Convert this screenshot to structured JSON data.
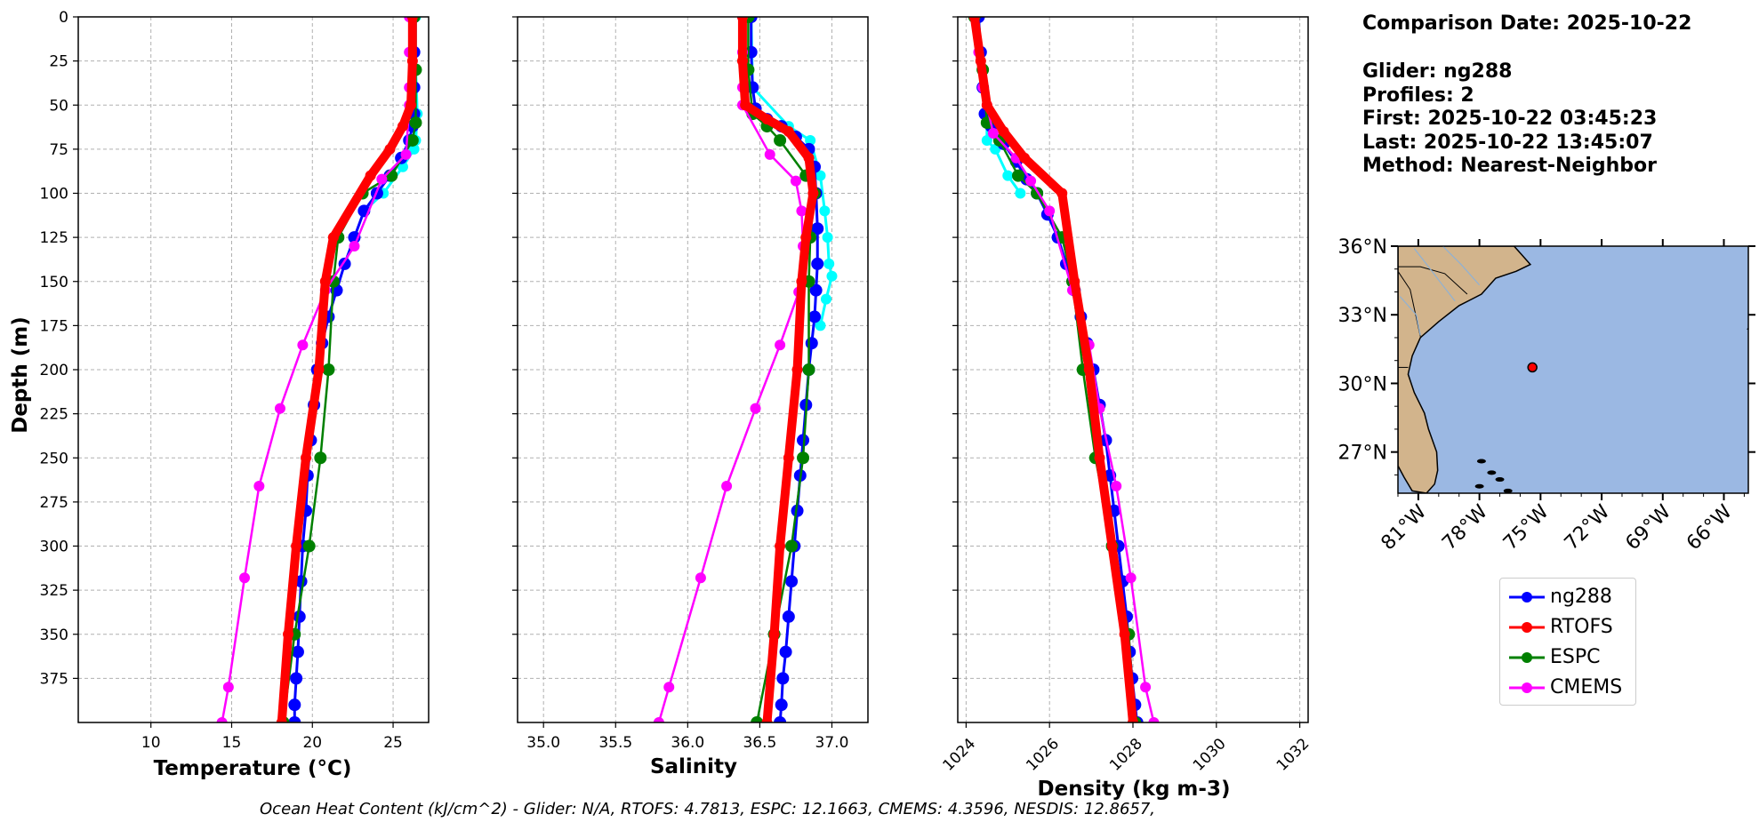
{
  "info": {
    "comparison_date": "Comparison Date: 2025-10-22",
    "glider": "Glider: ng288",
    "profiles": "Profiles: 2",
    "first": "First: 2025-10-22 03:45:23",
    "last": "Last: 2025-10-22 13:45:07",
    "method": "Method: Nearest-Neighbor"
  },
  "ohc_caption": "Ocean Heat Content (kJ/cm^2) - Glider: N/A,  RTOFS: 4.7813,  ESPC: 12.1663,  CMEMS: 4.3596,  NESDIS: 12.8657,",
  "legend": [
    {
      "label": "ng288",
      "color": "#0000ff"
    },
    {
      "label": "RTOFS",
      "color": "#ff0000"
    },
    {
      "label": "ESPC",
      "color": "#008000"
    },
    {
      "label": "CMEMS",
      "color": "#ff00ff"
    }
  ],
  "chart_data": [
    {
      "type": "line",
      "xlabel": "Temperature (°C)",
      "ylabel": "Depth (m)",
      "xlim": [
        5.5,
        27.2
      ],
      "ylim": [
        400,
        0
      ],
      "xticks": [
        10,
        15,
        20,
        25
      ],
      "yticks": [
        0,
        25,
        50,
        75,
        100,
        125,
        150,
        175,
        200,
        225,
        250,
        275,
        300,
        325,
        350,
        375
      ],
      "grid": true,
      "series": [
        {
          "name": "ng288",
          "color": "#0000ff",
          "x": [
            26.3,
            26.3,
            26.3,
            26.3,
            26.2,
            26.0,
            25.5,
            24.8,
            24.0,
            23.2,
            22.6,
            22.0,
            21.5,
            21.0,
            20.6,
            20.3,
            20.1,
            19.9,
            19.7,
            19.6,
            19.4,
            19.3,
            19.2,
            19.1,
            19.0,
            18.9,
            18.9
          ],
          "y": [
            0,
            20,
            40,
            55,
            62,
            70,
            80,
            90,
            100,
            110,
            125,
            140,
            155,
            170,
            185,
            200,
            220,
            240,
            260,
            280,
            300,
            320,
            340,
            360,
            375,
            390,
            400
          ]
        },
        {
          "name": "RTOFS",
          "color": "#ff0000",
          "x": [
            26.2,
            26.2,
            26.1,
            25.6,
            24.8,
            23.6,
            21.3,
            20.8,
            20.4,
            19.6,
            19.0,
            18.5,
            18.1
          ],
          "y": [
            0,
            25,
            50,
            62,
            75,
            90,
            125,
            150,
            200,
            250,
            300,
            350,
            400
          ]
        },
        {
          "name": "ESPC",
          "color": "#008000",
          "x": [
            26.3,
            26.4,
            26.4,
            26.2,
            24.9,
            23.1,
            21.6,
            21.3,
            21.0,
            20.5,
            19.8,
            18.9,
            18.2
          ],
          "y": [
            0,
            30,
            60,
            70,
            90,
            100,
            125,
            150,
            200,
            250,
            300,
            350,
            400
          ]
        },
        {
          "name": "CMEMS",
          "color": "#ff00ff",
          "x": [
            26.0,
            26.0,
            26.0,
            26.0,
            25.8,
            24.3,
            22.6,
            20.8,
            19.4,
            18.0,
            16.7,
            15.8,
            14.8,
            14.4
          ],
          "y": [
            0,
            20,
            40,
            50,
            78,
            92,
            130,
            155,
            186,
            222,
            266,
            318,
            380,
            400
          ]
        },
        {
          "name": "",
          "color": "#00ffff",
          "x": [
            26.4,
            26.4,
            26.5,
            26.4,
            26.3,
            25.6,
            24.4,
            23.2
          ],
          "y": [
            0,
            30,
            55,
            70,
            75,
            85,
            100,
            110
          ]
        }
      ]
    },
    {
      "type": "line",
      "xlabel": "Salinity",
      "xlim": [
        34.82,
        37.25
      ],
      "ylim": [
        400,
        0
      ],
      "xticks": [
        35.0,
        35.5,
        36.0,
        36.5,
        37.0
      ],
      "grid": true,
      "series": [
        {
          "name": "ng288",
          "color": "#0000ff",
          "x": [
            36.44,
            36.44,
            36.45,
            36.47,
            36.55,
            36.65,
            36.75,
            36.84,
            36.88,
            36.89,
            36.9,
            36.9,
            36.89,
            36.88,
            36.86,
            36.84,
            36.82,
            36.8,
            36.78,
            36.76,
            36.74,
            36.72,
            36.7,
            36.68,
            36.66,
            36.65,
            36.64
          ],
          "y": [
            0,
            20,
            40,
            52,
            58,
            62,
            68,
            75,
            85,
            100,
            120,
            140,
            155,
            170,
            185,
            200,
            220,
            240,
            260,
            280,
            300,
            320,
            340,
            360,
            375,
            390,
            400
          ]
        },
        {
          "name": "RTOFS",
          "color": "#ff0000",
          "x": [
            36.38,
            36.38,
            36.4,
            36.55,
            36.7,
            36.84,
            36.87,
            36.82,
            36.79,
            36.76,
            36.7,
            36.64,
            36.6,
            36.55
          ],
          "y": [
            0,
            25,
            50,
            58,
            65,
            80,
            100,
            125,
            150,
            200,
            250,
            300,
            350,
            400
          ]
        },
        {
          "name": "ESPC",
          "color": "#008000",
          "x": [
            36.42,
            36.42,
            36.45,
            36.55,
            36.64,
            36.82,
            36.88,
            36.85,
            36.84,
            36.84,
            36.8,
            36.72,
            36.6,
            36.48
          ],
          "y": [
            0,
            30,
            55,
            62,
            70,
            90,
            100,
            125,
            150,
            200,
            250,
            300,
            350,
            400
          ]
        },
        {
          "name": "CMEMS",
          "color": "#ff00ff",
          "x": [
            36.38,
            36.38,
            36.38,
            36.38,
            36.57,
            36.75,
            36.79,
            36.8,
            36.77,
            36.64,
            36.47,
            36.27,
            36.09,
            35.87,
            35.8
          ],
          "y": [
            0,
            20,
            40,
            50,
            78,
            93,
            110,
            130,
            156,
            186,
            222,
            266,
            318,
            380,
            400
          ]
        },
        {
          "name": "",
          "color": "#00ffff",
          "x": [
            36.44,
            36.45,
            36.7,
            36.85,
            36.92,
            36.95,
            36.97,
            36.98,
            37.0,
            36.96,
            36.92
          ],
          "y": [
            0,
            40,
            62,
            70,
            90,
            110,
            125,
            140,
            147,
            160,
            175
          ]
        }
      ]
    },
    {
      "type": "line",
      "xlabel": "Density (kg m-3)",
      "xlim": [
        1023.8,
        1032.2
      ],
      "ylim": [
        400,
        0
      ],
      "xticks": [
        1024,
        1026,
        1028,
        1030,
        1032
      ],
      "grid": true,
      "series": [
        {
          "name": "ng288",
          "color": "#0000ff",
          "x": [
            1024.3,
            1024.35,
            1024.4,
            1024.45,
            1024.6,
            1024.9,
            1025.2,
            1025.45,
            1025.7,
            1025.95,
            1026.2,
            1026.4,
            1026.6,
            1026.75,
            1026.9,
            1027.05,
            1027.2,
            1027.35,
            1027.45,
            1027.55,
            1027.65,
            1027.75,
            1027.85,
            1027.92,
            1027.98,
            1028.05,
            1028.1
          ],
          "y": [
            0,
            20,
            40,
            55,
            62,
            72,
            82,
            92,
            100,
            112,
            125,
            140,
            155,
            170,
            185,
            200,
            220,
            240,
            260,
            280,
            300,
            320,
            340,
            360,
            375,
            390,
            400
          ]
        },
        {
          "name": "RTOFS",
          "color": "#ff0000",
          "x": [
            1024.2,
            1024.35,
            1024.5,
            1024.9,
            1025.4,
            1026.3,
            1026.6,
            1026.95,
            1027.2,
            1027.5,
            1027.8,
            1028.0
          ],
          "y": [
            0,
            25,
            50,
            65,
            80,
            100,
            150,
            200,
            250,
            300,
            350,
            400
          ]
        },
        {
          "name": "ESPC",
          "color": "#008000",
          "x": [
            1024.2,
            1024.4,
            1024.5,
            1024.8,
            1025.25,
            1025.7,
            1026.3,
            1026.55,
            1026.8,
            1027.1,
            1027.5,
            1027.9,
            1028.05
          ],
          "y": [
            0,
            30,
            60,
            70,
            90,
            100,
            125,
            150,
            200,
            250,
            300,
            350,
            400
          ]
        },
        {
          "name": "CMEMS",
          "color": "#ff00ff",
          "x": [
            1024.2,
            1024.3,
            1024.4,
            1024.5,
            1024.65,
            1025.2,
            1025.55,
            1026.0,
            1026.55,
            1026.95,
            1027.2,
            1027.6,
            1027.95,
            1028.3,
            1028.5
          ],
          "y": [
            0,
            20,
            40,
            50,
            66,
            80,
            93,
            110,
            155,
            186,
            222,
            266,
            318,
            380,
            400
          ]
        },
        {
          "name": "",
          "color": "#00ffff",
          "x": [
            1024.3,
            1024.4,
            1024.5,
            1024.5,
            1024.7,
            1025.0,
            1025.3
          ],
          "y": [
            0,
            40,
            60,
            70,
            75,
            90,
            100
          ]
        }
      ]
    },
    {
      "type": "map",
      "lat_ticks": [
        "36°N",
        "33°N",
        "30°N",
        "27°N"
      ],
      "lon_ticks": [
        "81°W",
        "78°W",
        "75°W",
        "72°W",
        "69°W",
        "66°W"
      ],
      "marker": {
        "lon": -75.4,
        "lat": 30.7,
        "color": "#ff0000"
      },
      "extent": {
        "lon": [
          -82,
          -64.8
        ],
        "lat": [
          25.2,
          36
        ]
      },
      "land_color": "#d2b48c",
      "ocean_color": "#9bb8e3"
    }
  ]
}
